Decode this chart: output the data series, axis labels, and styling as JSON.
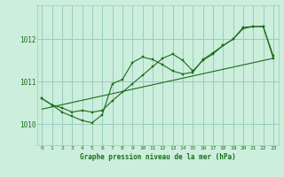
{
  "title": "Graphe pression niveau de la mer (hPa)",
  "bg_color": "#cceedd",
  "grid_color": "#99ccbb",
  "line_color": "#1a6e1a",
  "xlim": [
    -0.5,
    23.5
  ],
  "ylim": [
    1009.5,
    1012.8
  ],
  "yticks": [
    1010,
    1011,
    1012
  ],
  "xticks": [
    0,
    1,
    2,
    3,
    4,
    5,
    6,
    7,
    8,
    9,
    10,
    11,
    12,
    13,
    14,
    15,
    16,
    17,
    18,
    19,
    20,
    21,
    22,
    23
  ],
  "line1_x": [
    0,
    1,
    2,
    3,
    4,
    5,
    6,
    7,
    8,
    9,
    10,
    11,
    12,
    13,
    14,
    15,
    16,
    17,
    18,
    19,
    20,
    21,
    22,
    23
  ],
  "line1_y": [
    1010.6,
    1010.45,
    1010.38,
    1010.28,
    1010.32,
    1010.28,
    1010.32,
    1010.55,
    1010.75,
    1010.95,
    1011.15,
    1011.35,
    1011.55,
    1011.65,
    1011.5,
    1011.25,
    1011.5,
    1011.65,
    1011.85,
    1012.0,
    1012.25,
    1012.3,
    1012.3,
    1011.6
  ],
  "line2_x": [
    0,
    1,
    2,
    3,
    4,
    5,
    6,
    7,
    8,
    9,
    10,
    11,
    12,
    13,
    14,
    15,
    16,
    17,
    18,
    19,
    20,
    21,
    22,
    23
  ],
  "line2_y": [
    1010.6,
    1010.45,
    1010.28,
    1010.18,
    1010.08,
    1010.03,
    1010.22,
    1010.95,
    1011.05,
    1011.45,
    1011.58,
    1011.52,
    1011.4,
    1011.25,
    1011.18,
    1011.22,
    1011.52,
    1011.68,
    1011.85,
    1012.0,
    1012.28,
    1012.3,
    1012.3,
    1011.55
  ],
  "line3_x": [
    0,
    23
  ],
  "line3_y": [
    1010.35,
    1011.55
  ]
}
